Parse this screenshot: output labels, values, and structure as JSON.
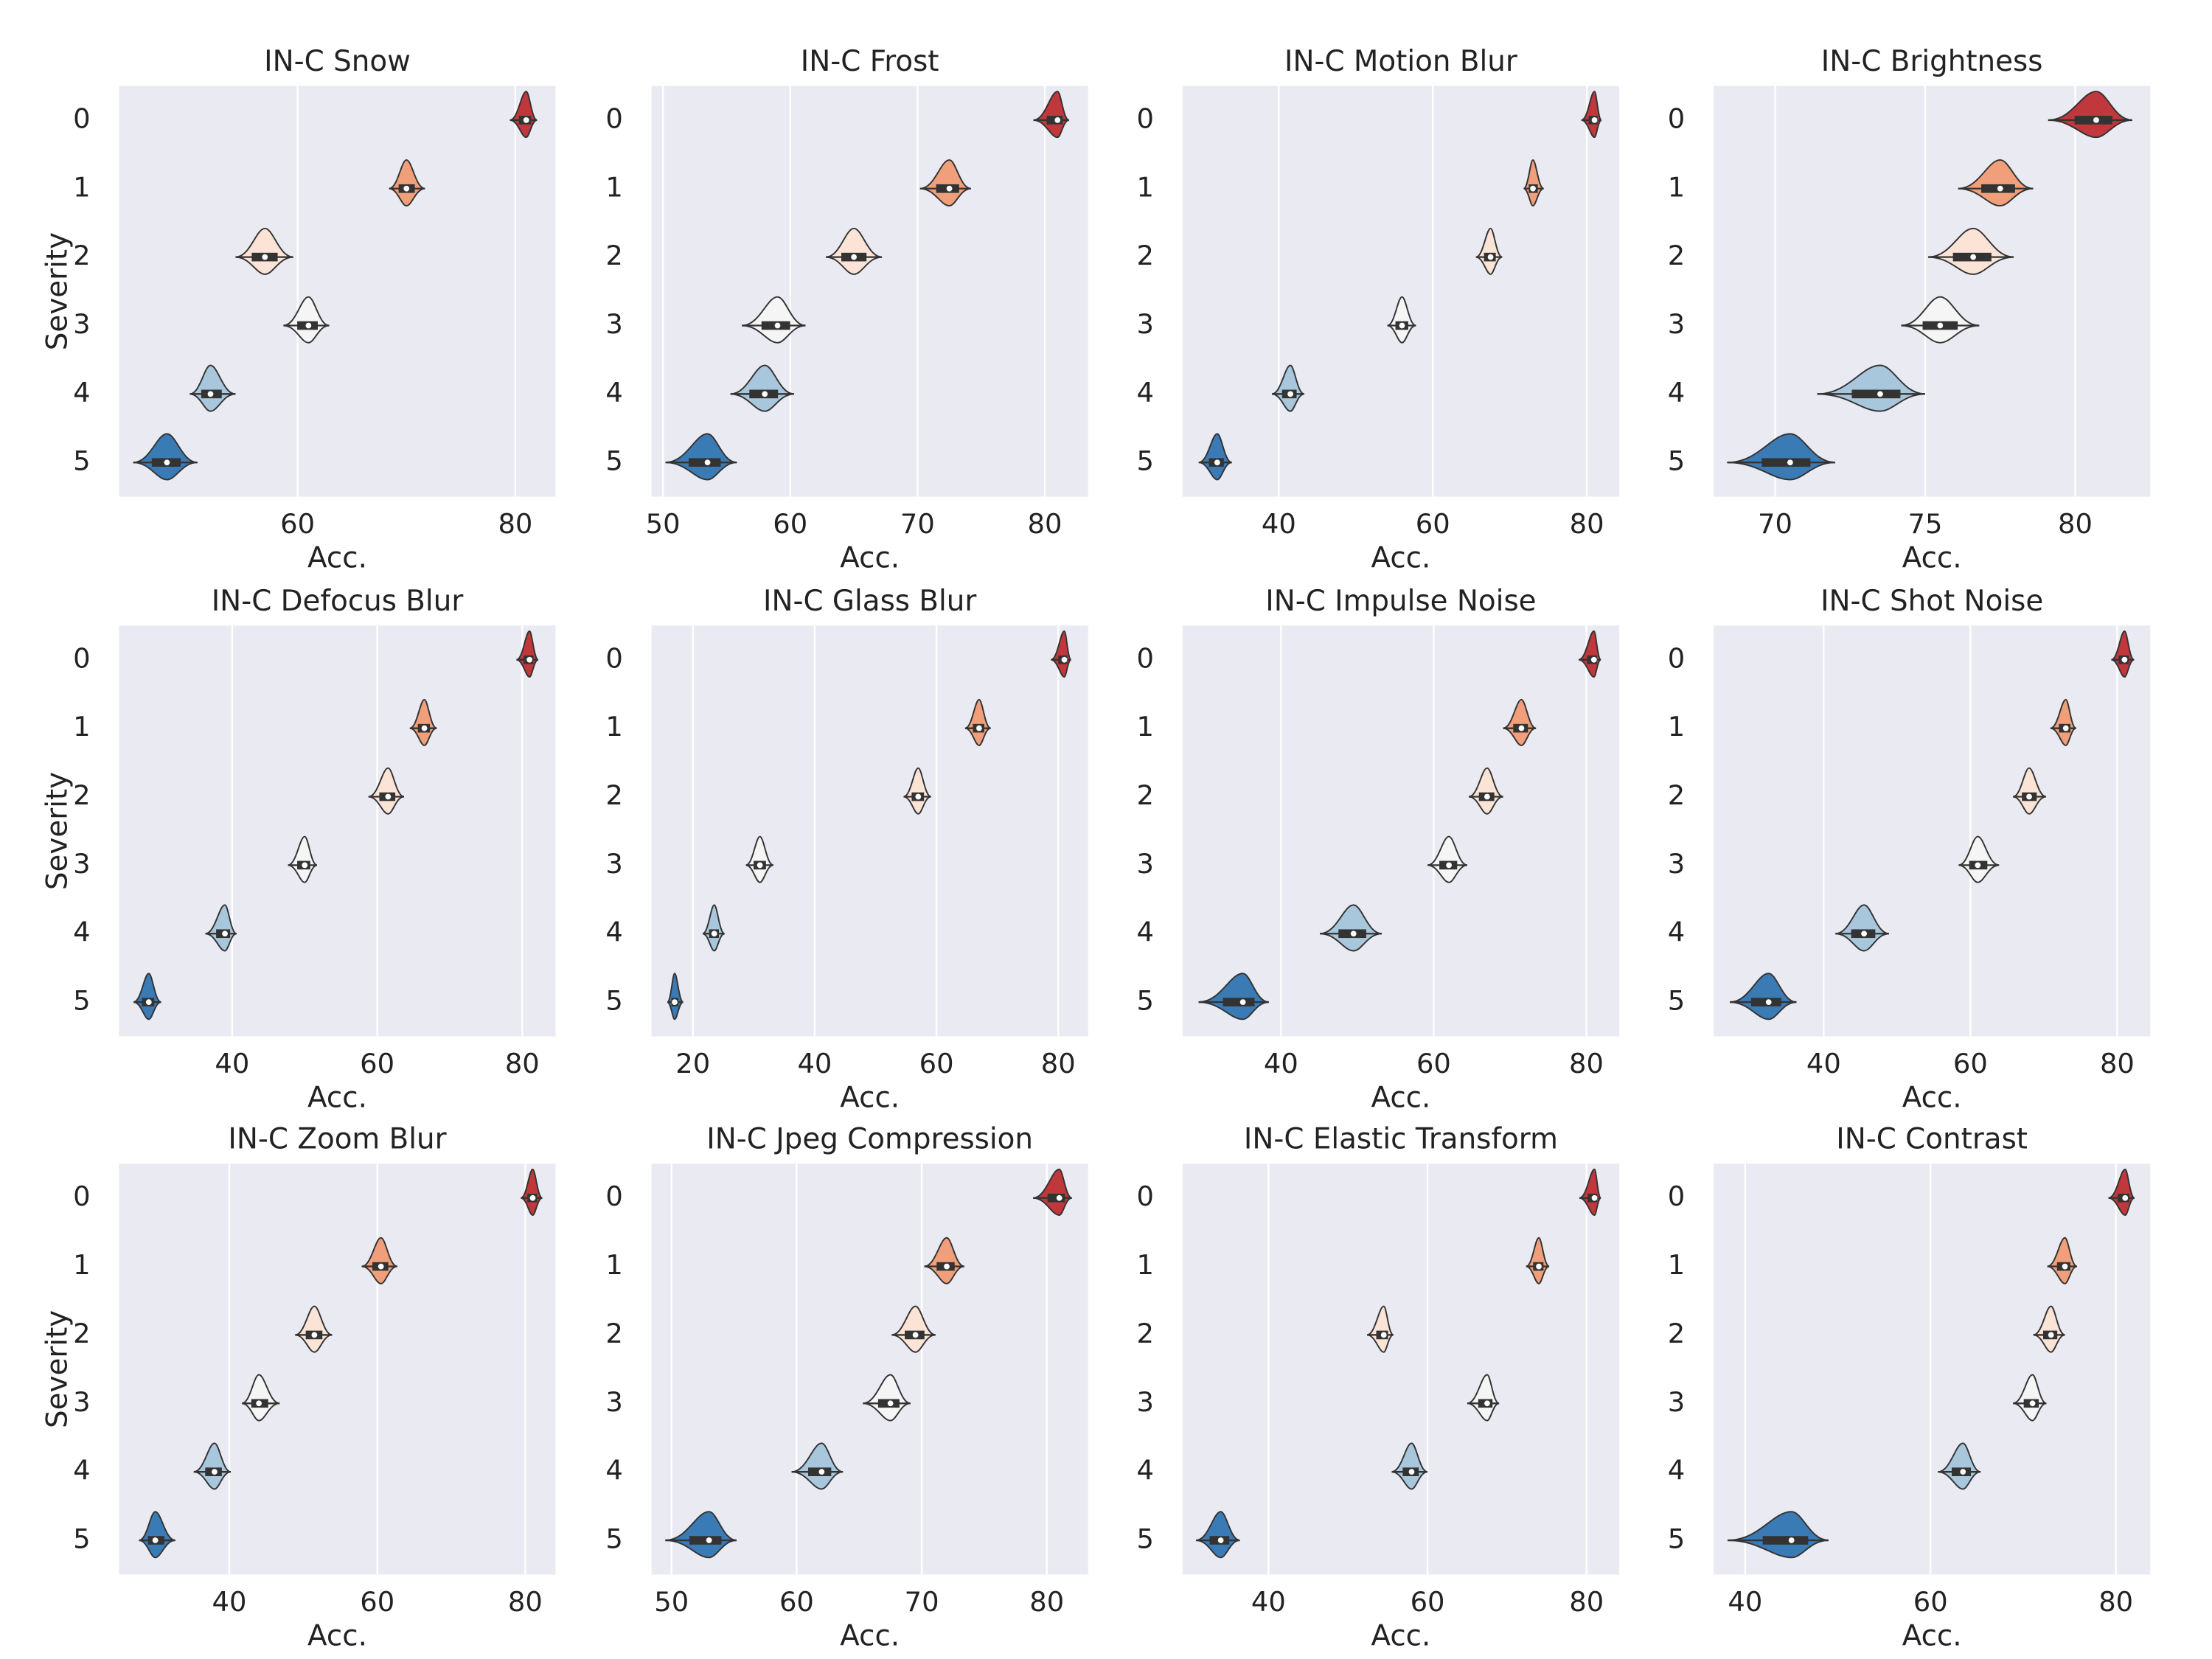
{
  "chart_data": [
    {
      "type": "violin",
      "title": "IN-C Snow",
      "xlabel": "Acc.",
      "ylabel": "Severity",
      "categories": [
        "0",
        "1",
        "2",
        "3",
        "4",
        "5"
      ],
      "values": [
        81,
        70,
        57,
        61,
        52,
        48
      ],
      "mins": [
        79.5,
        68.4,
        54.3,
        58.7,
        50.1,
        44.9
      ],
      "maxs": [
        82,
        71.7,
        59.6,
        62.9,
        54.3,
        50.8
      ],
      "xlim": [
        43.6,
        83.7
      ],
      "xticks": [
        60,
        80
      ],
      "grid": true,
      "colors": [
        "#c0373c",
        "#f09f7a",
        "#fbe3d6",
        "#f5f5f5",
        "#a8c7dc",
        "#3b7bb5"
      ]
    },
    {
      "type": "violin",
      "title": "IN-C Frost",
      "xlabel": "Acc.",
      "categories": [
        "0",
        "1",
        "2",
        "3",
        "4",
        "5"
      ],
      "values": [
        81,
        72.5,
        65,
        59,
        58,
        53.5
      ],
      "mins": [
        79.1,
        70.2,
        62.8,
        56.2,
        55.3,
        50.2
      ],
      "maxs": [
        81.9,
        74.2,
        67.2,
        61.2,
        60.3,
        55.8
      ],
      "xlim": [
        49.1,
        83.4
      ],
      "xticks": [
        50,
        60,
        70,
        80
      ],
      "grid": true,
      "colors": [
        "#c0373c",
        "#f09f7a",
        "#fbe3d6",
        "#f5f5f5",
        "#a8c7dc",
        "#3b7bb5"
      ]
    },
    {
      "type": "violin",
      "title": "IN-C Motion Blur",
      "xlabel": "Acc.",
      "categories": [
        "0",
        "1",
        "2",
        "3",
        "4",
        "5"
      ],
      "values": [
        81,
        73,
        67.5,
        56,
        41.5,
        32
      ],
      "mins": [
        79.3,
        71.8,
        65.6,
        54.1,
        39.1,
        29.6
      ],
      "maxs": [
        81.9,
        74.4,
        69,
        57.8,
        43.3,
        33.9
      ],
      "xlim": [
        27.5,
        84.2
      ],
      "xticks": [
        40,
        60,
        80
      ],
      "grid": true,
      "colors": [
        "#c0373c",
        "#f09f7a",
        "#fbe3d6",
        "#f5f5f5",
        "#a8c7dc",
        "#3b7bb5"
      ]
    },
    {
      "type": "violin",
      "title": "IN-C Brightness",
      "xlabel": "Acc.",
      "categories": [
        "0",
        "1",
        "2",
        "3",
        "4",
        "5"
      ],
      "values": [
        80.7,
        77.5,
        76.6,
        75.5,
        73.5,
        70.5
      ],
      "mins": [
        79.1,
        76.1,
        75.1,
        74.2,
        71.4,
        68.4
      ],
      "maxs": [
        81.9,
        78.6,
        77.95,
        76.8,
        75,
        72
      ],
      "xlim": [
        67.95,
        82.5
      ],
      "xticks": [
        70,
        75,
        80
      ],
      "grid": true,
      "colors": [
        "#c0373c",
        "#f09f7a",
        "#fbe3d6",
        "#f5f5f5",
        "#a8c7dc",
        "#3b7bb5"
      ]
    },
    {
      "type": "violin",
      "title": "IN-C Defocus Blur",
      "xlabel": "Acc.",
      "ylabel": "Severity",
      "categories": [
        "0",
        "1",
        "2",
        "3",
        "4",
        "5"
      ],
      "values": [
        81,
        66.5,
        61.5,
        50,
        39,
        28.5
      ],
      "mins": [
        79.2,
        64.5,
        58.8,
        47.7,
        36.3,
        26.4
      ],
      "maxs": [
        82.2,
        68.2,
        63.7,
        51.7,
        40.6,
        30.2
      ],
      "xlim": [
        24.4,
        84.6
      ],
      "xticks": [
        40,
        60,
        80
      ],
      "grid": true,
      "colors": [
        "#c0373c",
        "#f09f7a",
        "#fbe3d6",
        "#f5f5f5",
        "#a8c7dc",
        "#3b7bb5"
      ]
    },
    {
      "type": "violin",
      "title": "IN-C Glass Blur",
      "xlabel": "Acc.",
      "categories": [
        "0",
        "1",
        "2",
        "3",
        "4",
        "5"
      ],
      "values": [
        81,
        67,
        57,
        31,
        23.5,
        17
      ],
      "mins": [
        78.8,
        64.7,
        54.6,
        28.7,
        21.6,
        15.8
      ],
      "maxs": [
        82.1,
        68.9,
        59.1,
        33.2,
        25.2,
        18.4
      ],
      "xlim": [
        13.2,
        84.9
      ],
      "xticks": [
        20,
        40,
        60,
        80
      ],
      "grid": true,
      "colors": [
        "#c0373c",
        "#f09f7a",
        "#fbe3d6",
        "#f5f5f5",
        "#a8c7dc",
        "#3b7bb5"
      ]
    },
    {
      "type": "violin",
      "title": "IN-C Impulse Noise",
      "xlabel": "Acc.",
      "categories": [
        "0",
        "1",
        "2",
        "3",
        "4",
        "5"
      ],
      "values": [
        81,
        71.5,
        67,
        62,
        49.5,
        35
      ],
      "mins": [
        79,
        69.1,
        64.6,
        59.2,
        45.1,
        29.2
      ],
      "maxs": [
        81.9,
        73.4,
        69.1,
        64.4,
        53.2,
        38.4
      ],
      "xlim": [
        27.1,
        84.3
      ],
      "xticks": [
        40,
        60,
        80
      ],
      "grid": true,
      "colors": [
        "#c0373c",
        "#f09f7a",
        "#fbe3d6",
        "#f5f5f5",
        "#a8c7dc",
        "#3b7bb5"
      ]
    },
    {
      "type": "violin",
      "title": "IN-C Shot Noise",
      "xlabel": "Acc.",
      "categories": [
        "0",
        "1",
        "2",
        "3",
        "4",
        "5"
      ],
      "values": [
        81,
        73,
        68,
        61,
        45.5,
        32.5
      ],
      "mins": [
        79.2,
        70.9,
        65.8,
        58.4,
        41.6,
        27.2
      ],
      "maxs": [
        82.3,
        74.4,
        70.3,
        63.9,
        48.9,
        36.3
      ],
      "xlim": [
        25,
        84.5
      ],
      "xticks": [
        40,
        60,
        80
      ],
      "grid": true,
      "colors": [
        "#c0373c",
        "#f09f7a",
        "#fbe3d6",
        "#f5f5f5",
        "#a8c7dc",
        "#3b7bb5"
      ]
    },
    {
      "type": "violin",
      "title": "IN-C Zoom Blur",
      "xlabel": "Acc.",
      "ylabel": "Severity",
      "categories": [
        "0",
        "1",
        "2",
        "3",
        "4",
        "5"
      ],
      "values": [
        81,
        60.5,
        51.5,
        44,
        38,
        30
      ],
      "mins": [
        79.4,
        57.9,
        48.9,
        41.7,
        35.2,
        27.8
      ],
      "maxs": [
        82.3,
        62.7,
        53.9,
        46.8,
        40.2,
        32.7
      ],
      "xlim": [
        25.1,
        84.1
      ],
      "xticks": [
        40,
        60,
        80
      ],
      "grid": true,
      "colors": [
        "#c0373c",
        "#f09f7a",
        "#fbe3d6",
        "#f5f5f5",
        "#a8c7dc",
        "#3b7bb5"
      ]
    },
    {
      "type": "violin",
      "title": "IN-C Jpeg Compression",
      "xlabel": "Acc.",
      "categories": [
        "0",
        "1",
        "2",
        "3",
        "4",
        "5"
      ],
      "values": [
        81,
        72,
        69.5,
        67.5,
        62,
        53
      ],
      "mins": [
        78.9,
        70.2,
        67.6,
        65.3,
        59.6,
        49.5
      ],
      "maxs": [
        82,
        73.4,
        71.1,
        69.1,
        63.7,
        55.2
      ],
      "xlim": [
        48.4,
        83.3
      ],
      "xticks": [
        50,
        60,
        70,
        80
      ],
      "grid": true,
      "colors": [
        "#c0373c",
        "#f09f7a",
        "#fbe3d6",
        "#f5f5f5",
        "#a8c7dc",
        "#3b7bb5"
      ]
    },
    {
      "type": "violin",
      "title": "IN-C Elastic Transform",
      "xlabel": "Acc.",
      "categories": [
        "0",
        "1",
        "2",
        "3",
        "4",
        "5"
      ],
      "values": [
        81,
        74,
        54.5,
        67.5,
        58,
        34
      ],
      "mins": [
        79.1,
        72.4,
        52.4,
        65,
        55.5,
        30.9
      ],
      "maxs": [
        81.8,
        75.3,
        55.7,
        69,
        60,
        36.4
      ],
      "xlim": [
        29.2,
        84.1
      ],
      "xticks": [
        40,
        60,
        80
      ],
      "grid": true,
      "colors": [
        "#c0373c",
        "#f09f7a",
        "#fbe3d6",
        "#f5f5f5",
        "#a8c7dc",
        "#3b7bb5"
      ]
    },
    {
      "type": "violin",
      "title": "IN-C Contrast",
      "xlabel": "Acc.",
      "categories": [
        "0",
        "1",
        "2",
        "3",
        "4",
        "5"
      ],
      "values": [
        81,
        74.5,
        73,
        71,
        63.5,
        45
      ],
      "mins": [
        79.2,
        72.6,
        71.1,
        68.9,
        60.8,
        38.1
      ],
      "maxs": [
        82,
        75.8,
        74.5,
        72.5,
        65.4,
        49
      ],
      "xlim": [
        36.6,
        83.7
      ],
      "xticks": [
        40,
        60,
        80
      ],
      "grid": true,
      "colors": [
        "#c0373c",
        "#f09f7a",
        "#fbe3d6",
        "#f5f5f5",
        "#a8c7dc",
        "#3b7bb5"
      ]
    }
  ]
}
